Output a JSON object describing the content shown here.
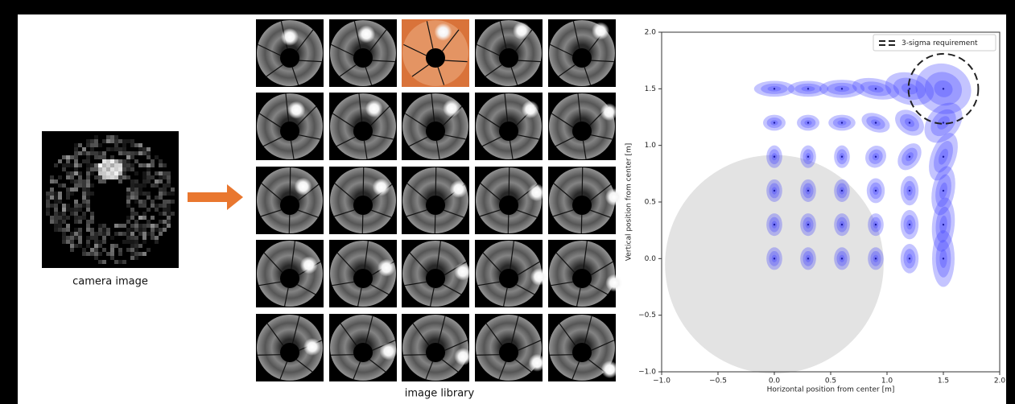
{
  "camera_caption": "camera image",
  "library_caption": "image library",
  "chart_data": {
    "type": "scatter",
    "xlabel": "Horizontal position from center [m]",
    "ylabel": "Vertical position from center [m]",
    "xlim": [
      -1.0,
      2.0
    ],
    "ylim": [
      -1.0,
      2.0
    ],
    "xticks": [
      {
        "value": -1.0,
        "label": "−1.0"
      },
      {
        "value": -0.5,
        "label": "−0.5"
      },
      {
        "value": 0,
        "label": "0.0"
      },
      {
        "value": 0.5,
        "label": "0.5"
      },
      {
        "value": 1.0,
        "label": "1.0"
      },
      {
        "value": 1.5,
        "label": "1.5"
      },
      {
        "value": 2.0,
        "label": "2.0"
      }
    ],
    "yticks": [
      {
        "value": -1.0,
        "label": "−1.0"
      },
      {
        "value": -0.5,
        "label": "−0.5"
      },
      {
        "value": 0,
        "label": "0.0"
      },
      {
        "value": 0.5,
        "label": "0.5"
      },
      {
        "value": 1.0,
        "label": "1.0"
      },
      {
        "value": 1.5,
        "label": "1.5"
      },
      {
        "value": 2.0,
        "label": "2.0"
      }
    ],
    "color": "#3b3bff",
    "keepout": {
      "center": [
        0,
        -0.05
      ],
      "radius": 0.97,
      "color": "#e3e3e3"
    },
    "requirement": {
      "name": "3-sigma requirement",
      "center": [
        1.5,
        1.5
      ],
      "radius": 0.31
    },
    "legend": "upper right",
    "points": [
      {
        "x": 0,
        "y": 0,
        "rx": 0.07,
        "ry": 0.1,
        "angle": 0
      },
      {
        "x": 0.3,
        "y": 0,
        "rx": 0.07,
        "ry": 0.1,
        "angle": 0
      },
      {
        "x": 0.6,
        "y": 0,
        "rx": 0.07,
        "ry": 0.1,
        "angle": 0
      },
      {
        "x": 0.9,
        "y": 0,
        "rx": 0.07,
        "ry": 0.1,
        "angle": 0
      },
      {
        "x": 1.2,
        "y": 0,
        "rx": 0.08,
        "ry": 0.13,
        "angle": 0
      },
      {
        "x": 1.5,
        "y": 0,
        "rx": 0.1,
        "ry": 0.25,
        "angle": 0
      },
      {
        "x": 0,
        "y": 0.3,
        "rx": 0.07,
        "ry": 0.1,
        "angle": 0
      },
      {
        "x": 0.3,
        "y": 0.3,
        "rx": 0.07,
        "ry": 0.1,
        "angle": 0
      },
      {
        "x": 0.6,
        "y": 0.3,
        "rx": 0.07,
        "ry": 0.1,
        "angle": 0
      },
      {
        "x": 0.9,
        "y": 0.3,
        "rx": 0.07,
        "ry": 0.1,
        "angle": 0
      },
      {
        "x": 1.2,
        "y": 0.3,
        "rx": 0.08,
        "ry": 0.13,
        "angle": 0
      },
      {
        "x": 1.5,
        "y": 0.3,
        "rx": 0.1,
        "ry": 0.24,
        "angle": -5
      },
      {
        "x": 0,
        "y": 0.6,
        "rx": 0.07,
        "ry": 0.1,
        "angle": 0
      },
      {
        "x": 0.3,
        "y": 0.6,
        "rx": 0.07,
        "ry": 0.1,
        "angle": 0
      },
      {
        "x": 0.6,
        "y": 0.6,
        "rx": 0.07,
        "ry": 0.1,
        "angle": 0
      },
      {
        "x": 0.9,
        "y": 0.6,
        "rx": 0.08,
        "ry": 0.11,
        "angle": 0
      },
      {
        "x": 1.2,
        "y": 0.6,
        "rx": 0.08,
        "ry": 0.13,
        "angle": 0
      },
      {
        "x": 1.5,
        "y": 0.6,
        "rx": 0.1,
        "ry": 0.22,
        "angle": -10
      },
      {
        "x": 0,
        "y": 0.9,
        "rx": 0.07,
        "ry": 0.1,
        "angle": 0
      },
      {
        "x": 0.3,
        "y": 0.9,
        "rx": 0.07,
        "ry": 0.1,
        "angle": 0
      },
      {
        "x": 0.6,
        "y": 0.9,
        "rx": 0.07,
        "ry": 0.1,
        "angle": 0
      },
      {
        "x": 0.9,
        "y": 0.9,
        "rx": 0.09,
        "ry": 0.1,
        "angle": -30
      },
      {
        "x": 1.2,
        "y": 0.9,
        "rx": 0.09,
        "ry": 0.13,
        "angle": -35
      },
      {
        "x": 1.5,
        "y": 0.9,
        "rx": 0.11,
        "ry": 0.22,
        "angle": -20
      },
      {
        "x": 0,
        "y": 1.2,
        "rx": 0.1,
        "ry": 0.07,
        "angle": 0
      },
      {
        "x": 0.3,
        "y": 1.2,
        "rx": 0.1,
        "ry": 0.07,
        "angle": 0
      },
      {
        "x": 0.6,
        "y": 1.2,
        "rx": 0.12,
        "ry": 0.07,
        "angle": 0
      },
      {
        "x": 0.9,
        "y": 1.2,
        "rx": 0.13,
        "ry": 0.08,
        "angle": -20
      },
      {
        "x": 1.2,
        "y": 1.2,
        "rx": 0.14,
        "ry": 0.1,
        "angle": -35
      },
      {
        "x": 1.5,
        "y": 1.2,
        "rx": 0.14,
        "ry": 0.2,
        "angle": -40
      },
      {
        "x": 0,
        "y": 1.5,
        "rx": 0.18,
        "ry": 0.07,
        "angle": 0
      },
      {
        "x": 0.3,
        "y": 1.5,
        "rx": 0.18,
        "ry": 0.07,
        "angle": 0
      },
      {
        "x": 0.6,
        "y": 1.5,
        "rx": 0.2,
        "ry": 0.08,
        "angle": 0
      },
      {
        "x": 0.9,
        "y": 1.5,
        "rx": 0.21,
        "ry": 0.09,
        "angle": -10
      },
      {
        "x": 1.2,
        "y": 1.5,
        "rx": 0.22,
        "ry": 0.14,
        "angle": -15
      },
      {
        "x": 1.5,
        "y": 1.5,
        "rx": 0.25,
        "ry": 0.22,
        "angle": -20
      }
    ]
  }
}
